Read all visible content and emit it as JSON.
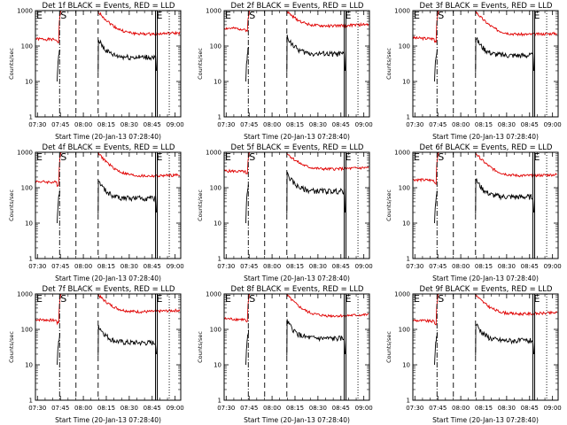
{
  "chart_data": {
    "type": "line",
    "y_scale": "log",
    "ylim": [
      1,
      1000
    ],
    "ylabel": "Counts/sec",
    "xlabel": "Start Time (20-Jan-13 07:28:40)",
    "x_tick_labels": [
      "07:30",
      "07:45",
      "08:00",
      "08:15",
      "08:30",
      "08:45",
      "09:00"
    ],
    "x_tick_minutes": [
      1.33,
      16.33,
      31.33,
      46.33,
      61.33,
      76.33,
      91.33
    ],
    "xlim_minutes": [
      0,
      95
    ],
    "y_tick_labels": [
      "1",
      "10",
      "100",
      "1000"
    ],
    "y_tick_values": [
      1,
      10,
      100,
      1000
    ],
    "series_names": [
      "Events",
      "LLD"
    ],
    "series_colors": {
      "Events": "#000000",
      "LLD": "#e00000"
    },
    "interval_markers": [
      {
        "label": "S",
        "minute": 15.8,
        "style": "dash-dot"
      },
      {
        "label": "",
        "minute": 26.5,
        "style": "dashed"
      },
      {
        "label": "",
        "minute": 41.0,
        "style": "dashed"
      },
      {
        "label": "E",
        "minute": 78.5,
        "style": "solid"
      },
      {
        "label": "",
        "minute": 87.5,
        "style": "dotted"
      }
    ],
    "edge_label": "E",
    "panels": [
      {
        "title": "Det 1f BLACK = Events, RED = LLD",
        "events_level": 48,
        "lld_level": 190,
        "lld_peak": 1000,
        "pre_lld": 160,
        "seed": 1
      },
      {
        "title": "Det 2f BLACK = Events, RED = LLD",
        "events_level": 60,
        "lld_level": 330,
        "lld_peak": 1000,
        "pre_lld": 320,
        "seed": 2
      },
      {
        "title": "Det 3f BLACK = Events, RED = LLD",
        "events_level": 55,
        "lld_level": 185,
        "lld_peak": 1000,
        "pre_lld": 170,
        "seed": 3
      },
      {
        "title": "Det 4f BLACK = Events, RED = LLD",
        "events_level": 50,
        "lld_level": 185,
        "lld_peak": 1000,
        "pre_lld": 150,
        "seed": 4
      },
      {
        "title": "Det 5f BLACK = Events, RED = LLD",
        "events_level": 80,
        "lld_level": 300,
        "lld_peak": 1000,
        "pre_lld": 300,
        "seed": 5
      },
      {
        "title": "Det 6f BLACK = Events, RED = LLD",
        "events_level": 55,
        "lld_level": 190,
        "lld_peak": 1000,
        "pre_lld": 170,
        "seed": 6
      },
      {
        "title": "Det 7f BLACK = Events, RED = LLD",
        "events_level": 42,
        "lld_level": 280,
        "lld_peak": 1000,
        "pre_lld": 190,
        "seed": 7
      },
      {
        "title": "Det 8f BLACK = Events, RED = LLD",
        "events_level": 55,
        "lld_level": 210,
        "lld_peak": 1000,
        "pre_lld": 200,
        "seed": 8
      },
      {
        "title": "Det 9f BLACK = Events, RED = LLD",
        "events_level": 48,
        "lld_level": 240,
        "lld_peak": 1000,
        "pre_lld": 180,
        "seed": 9
      }
    ]
  }
}
